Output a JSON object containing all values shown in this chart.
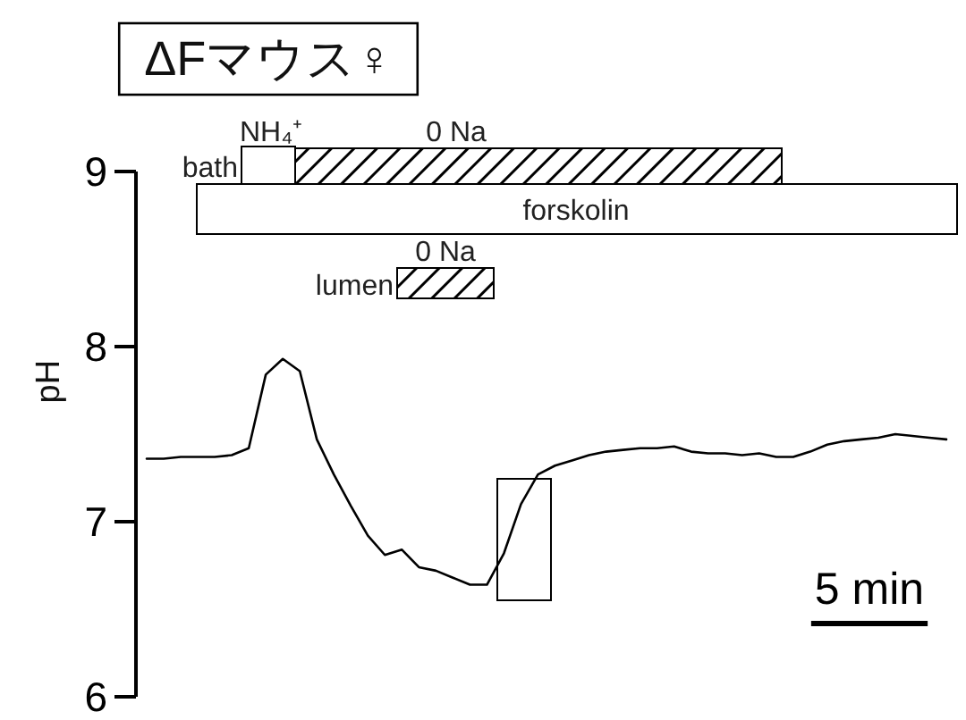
{
  "chart_data": [
    {
      "type": "line",
      "title": "ΔFマウス♀",
      "ylabel": "pH",
      "categories": [
        null,
        null,
        null,
        null,
        null,
        null,
        null,
        null,
        null,
        null,
        null,
        null,
        null,
        null,
        null,
        null,
        null,
        null,
        null,
        null,
        null,
        null,
        null,
        null,
        null,
        null,
        null,
        null,
        null,
        null,
        null,
        null,
        null,
        null,
        null,
        null,
        null,
        null,
        null,
        null,
        null,
        null,
        null,
        null,
        null,
        null,
        null,
        null
      ],
      "series": [
        {
          "color": "#000000",
          "values": [
            7.36,
            7.36,
            7.37,
            7.37,
            7.37,
            7.38,
            7.42,
            7.84,
            7.93,
            7.86,
            7.47,
            7.27,
            7.09,
            6.92,
            6.81,
            6.84,
            6.74,
            6.72,
            6.68,
            6.64,
            6.64,
            6.82,
            7.1,
            7.27,
            7.32,
            7.35,
            7.38,
            7.4,
            7.41,
            7.42,
            7.42,
            7.43,
            7.4,
            7.39,
            7.39,
            7.38,
            7.39,
            7.37,
            7.37,
            7.4,
            7.44,
            7.46,
            7.47,
            7.48,
            7.5,
            7.49,
            7.48,
            7.47
          ]
        }
      ],
      "ylim": [
        6,
        9
      ],
      "yticks": [
        6,
        7,
        8,
        9
      ],
      "tick_labels": "y",
      "annotations": [
        "5 min"
      ]
    },
    {
      "type": "other",
      "annotations": [
        "bath",
        "NH₄⁺",
        "0 Na",
        "forskolin",
        "lumen",
        "0 Na"
      ]
    }
  ]
}
